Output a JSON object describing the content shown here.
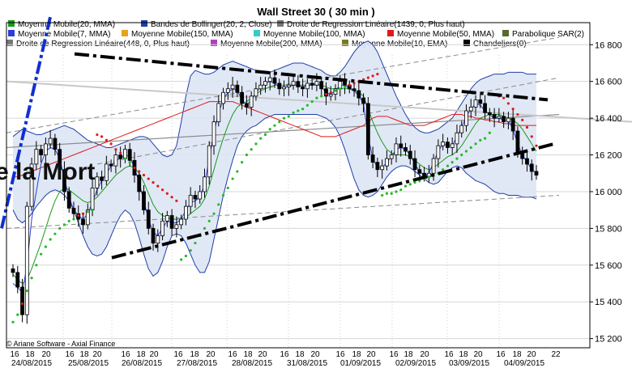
{
  "chart_data": {
    "type": "candlestick",
    "title": "Wall Street 30  ( 30 min )",
    "copyright": "© Ariane Software - Axial Finance",
    "overlay_text": "e la Mort",
    "ylim": [
      15150,
      16920
    ],
    "y_ticks": [
      15200,
      15400,
      15600,
      15800,
      16000,
      16200,
      16400,
      16600,
      16800
    ],
    "y_tick_labels": [
      "15 200",
      "15 400",
      "15 600",
      "15 800",
      "16 000",
      "16 200",
      "16 400",
      "16 600",
      "16 800"
    ],
    "hour_ticks": [
      "16",
      "18",
      "20",
      "16",
      "18",
      "20",
      "16",
      "18",
      "20",
      "16",
      "18",
      "20",
      "16",
      "18",
      "20",
      "16",
      "18",
      "20",
      "16",
      "18",
      "20",
      "16",
      "18",
      "20",
      "16",
      "18",
      "20",
      "16",
      "18",
      "20",
      "22"
    ],
    "date_ticks": [
      "24/08/2015",
      "25/08/2015",
      "26/08/2015",
      "27/08/2015",
      "28/08/2015",
      "31/08/2015",
      "01/09/2015",
      "02/09/2015",
      "03/09/2015",
      "04/09/2015"
    ],
    "legend": [
      {
        "label": "Moyenne Mobile(20, MMA)",
        "color": "#1a9a1a"
      },
      {
        "label": "Bandes de Bollinger(20, 2, Close)",
        "color": "#1f3fa8"
      },
      {
        "label": "Droite de Regression Linéaire(1439, 0, Plus haut)",
        "color": "#777777"
      },
      {
        "label": "Moyenne Mobile(7, MMA)",
        "color": "#2b3fd6"
      },
      {
        "label": "Moyenne Mobile(150, MMA)",
        "color": "#e8a21a"
      },
      {
        "label": "Moyenne Mobile(100, MMA)",
        "color": "#33cccc"
      },
      {
        "label": "Moyenne Mobile(50, MMA)",
        "color": "#e01a1a"
      },
      {
        "label": "Parabolique SAR(2)",
        "color": "#556b2f"
      },
      {
        "label": "Droite de Regression Linéaire(448, 0, Plus haut)",
        "color": "#777777"
      },
      {
        "label": "Moyenne Mobile(200, MMA)",
        "color": "#b040c0"
      },
      {
        "label": "Moyenne Mobile(10, EMA)",
        "color": "#7a7a20"
      },
      {
        "label": "Chandeliers(0)",
        "color": "#000000"
      }
    ],
    "colors": {
      "band_fill": "#dde5f5",
      "band_line": "#1f3fa8",
      "sar_up": "#22bb22",
      "sar_down": "#e01a1a",
      "trendline": "#000000",
      "manual_blue": "#1030d0"
    },
    "close": [
      15560,
      15480,
      15330,
      15920,
      16150,
      16230,
      16200,
      16260,
      16290,
      16230,
      16120,
      16000,
      15910,
      15880,
      15850,
      15820,
      15900,
      16020,
      16080,
      16060,
      16150,
      16140,
      16200,
      16180,
      16230,
      16170,
      16090,
      16000,
      15900,
      15800,
      15720,
      15760,
      15840,
      15870,
      15800,
      15820,
      15850,
      15920,
      15980,
      15960,
      16000,
      16080,
      16250,
      16380,
      16480,
      16540,
      16560,
      16580,
      16540,
      16480,
      16460,
      16520,
      16560,
      16580,
      16600,
      16620,
      16590,
      16560,
      16570,
      16580,
      16600,
      16570,
      16560,
      16590,
      16580,
      16600,
      16560,
      16520,
      16530,
      16560,
      16600,
      16580,
      16560,
      16550,
      16510,
      16480,
      16200,
      16160,
      16120,
      16140,
      16180,
      16200,
      16260,
      16240,
      16220,
      16180,
      16120,
      16100,
      16080,
      16100,
      16180,
      16250,
      16270,
      16240,
      16260,
      16320,
      16360,
      16440,
      16460,
      16500,
      16480,
      16430,
      16420,
      16400,
      16410,
      16380,
      16400,
      16330,
      16210,
      16180,
      16150,
      16110,
      16090
    ],
    "ma7": [
      15500,
      15480,
      15450,
      15600,
      15850,
      16000,
      16150,
      16220,
      16240,
      16230,
      16180,
      16070,
      15970,
      15900,
      15870,
      15850,
      15880,
      15940,
      16010,
      16060,
      16100,
      16140,
      16170,
      16180,
      16200,
      16190,
      16130,
      16050,
      15950,
      15850,
      15780,
      15760,
      15800,
      15840,
      15830,
      15830,
      15850,
      15900,
      15940,
      15950,
      15970,
      16040,
      16180,
      16320,
      16430,
      16500,
      16540,
      16560,
      16550,
      16500,
      16470,
      16500,
      16540,
      16570,
      16590,
      16600,
      16590,
      16570,
      16570,
      16570,
      16580,
      16580,
      16570,
      16580,
      16580,
      16590,
      16570,
      16540,
      16530,
      16550,
      16580,
      16580,
      16560,
      16550,
      16520,
      16480,
      16300,
      16180,
      16130,
      16130,
      16160,
      16190,
      16230,
      16240,
      16230,
      16200,
      16150,
      16110,
      16090,
      16100,
      16160,
      16220,
      16260,
      16250,
      16250,
      16300,
      16350,
      16410,
      16450,
      16480,
      16470,
      16440,
      16420,
      16400,
      16400,
      16390,
      16390,
      16340,
      16260,
      16200,
      16160,
      16120,
      16100
    ],
    "ma20": [
      15550,
      15520,
      15500,
      15520,
      15580,
      15650,
      15720,
      15800,
      15880,
      15950,
      16000,
      16020,
      16010,
      15990,
      15970,
      15950,
      15940,
      15950,
      15970,
      16000,
      16030,
      16060,
      16090,
      16110,
      16130,
      16140,
      16130,
      16100,
      16050,
      15990,
      15930,
      15890,
      15870,
      15860,
      15850,
      15850,
      15850,
      15860,
      15880,
      15900,
      15920,
      15960,
      16030,
      16120,
      16210,
      16290,
      16360,
      16420,
      16460,
      16480,
      16490,
      16510,
      16530,
      16550,
      16560,
      16570,
      16580,
      16580,
      16580,
      16580,
      16580,
      16580,
      16580,
      16580,
      16580,
      16580,
      16580,
      16570,
      16560,
      16560,
      16560,
      16560,
      16560,
      16550,
      16540,
      16520,
      16450,
      16380,
      16320,
      16270,
      16230,
      16210,
      16200,
      16200,
      16200,
      16190,
      16170,
      16150,
      16130,
      16120,
      16130,
      16150,
      16170,
      16190,
      16200,
      16220,
      16250,
      16290,
      16330,
      16370,
      16400,
      16410,
      16420,
      16420,
      16420,
      16410,
      16400,
      16390,
      16370,
      16340,
      16300,
      16260,
      16220
    ],
    "bb_upper": [
      16300,
      16320,
      16340,
      16330,
      16320,
      16310,
      16310,
      16320,
      16330,
      16340,
      16350,
      16360,
      16350,
      16340,
      16320,
      16300,
      16280,
      16270,
      16260,
      16250,
      16240,
      16240,
      16250,
      16260,
      16270,
      16280,
      16290,
      16300,
      16300,
      16290,
      16260,
      16230,
      16200,
      16190,
      16200,
      16250,
      16380,
      16520,
      16630,
      16660,
      16650,
      16640,
      16640,
      16650,
      16670,
      16690,
      16700,
      16710,
      16700,
      16690,
      16680,
      16670,
      16660,
      16650,
      16650,
      16650,
      16660,
      16670,
      16680,
      16690,
      16700,
      16700,
      16700,
      16690,
      16680,
      16670,
      16660,
      16640,
      16630,
      16630,
      16650,
      16680,
      16720,
      16760,
      16790,
      16810,
      16820,
      16800,
      16760,
      16700,
      16640,
      16580,
      16520,
      16470,
      16420,
      16380,
      16350,
      16330,
      16320,
      16320,
      16330,
      16340,
      16360,
      16380,
      16400,
      16440,
      16480,
      16520,
      16560,
      16590,
      16610,
      16620,
      16630,
      16640,
      16640,
      16640,
      16650,
      16650,
      16650,
      16650,
      16640,
      16640,
      16640
    ],
    "bb_lower": [
      15900,
      15850,
      15830,
      15850,
      15880,
      15920,
      15950,
      15980,
      16000,
      16010,
      16000,
      15980,
      15950,
      15900,
      15830,
      15760,
      15700,
      15660,
      15650,
      15660,
      15700,
      15760,
      15820,
      15870,
      15900,
      15880,
      15830,
      15750,
      15660,
      15580,
      15540,
      15560,
      15620,
      15700,
      15760,
      15770,
      15760,
      15720,
      15660,
      15600,
      15560,
      15560,
      15620,
      15740,
      15860,
      15980,
      16080,
      16170,
      16250,
      16300,
      16330,
      16350,
      16360,
      16380,
      16400,
      16410,
      16420,
      16420,
      16420,
      16420,
      16420,
      16420,
      16420,
      16420,
      16420,
      16420,
      16410,
      16400,
      16380,
      16350,
      16300,
      16230,
      16150,
      16070,
      16010,
      15980,
      15970,
      15980,
      16000,
      16040,
      16080,
      16110,
      16130,
      16140,
      16140,
      16130,
      16110,
      16090,
      16070,
      16050,
      16040,
      16050,
      16080,
      16110,
      16130,
      16140,
      16130,
      16100,
      16080,
      16060,
      16050,
      16040,
      16020,
      16000,
      15990,
      15990,
      15980,
      15980,
      15980,
      15970,
      15970,
      15970,
      15960
    ],
    "ma50": [
      16080,
      16080,
      16090,
      16100,
      16110,
      16120,
      16130,
      16140,
      16150,
      16160,
      16170,
      16180,
      16190,
      16200,
      16210,
      16220,
      16230,
      16240,
      16250,
      16260,
      16270,
      16280,
      16290,
      16300,
      16310,
      16320,
      16330,
      16340,
      16350,
      16360,
      16370,
      16380,
      16390,
      16400,
      16410,
      16420,
      16430,
      16440,
      16450,
      16460,
      16470,
      16480,
      16490,
      16490,
      16490,
      16490,
      16490,
      16490,
      16480,
      16470,
      16460,
      16450,
      16440,
      16430,
      16420,
      16410,
      16400,
      16390,
      16380,
      16370,
      16360,
      16350,
      16340,
      16330,
      16320,
      16310,
      16300,
      16300,
      16300,
      16300,
      16310,
      16320,
      16330,
      16340,
      16350,
      16360,
      16380,
      16400,
      16410,
      16410,
      16410,
      16400,
      16390,
      16380,
      16370,
      16360,
      16360,
      16360,
      16360,
      16370,
      16380,
      16390,
      16400,
      16410,
      16420,
      16420,
      16420,
      16410,
      16410,
      16400,
      16400,
      16390,
      16390,
      16380,
      16380,
      16370,
      16370,
      16360,
      16360,
      16360,
      16360,
      16360,
      16360
    ],
    "reg_long": [
      16240,
      16420
    ],
    "reg_short": [
      16600,
      16410
    ],
    "trend_upper": [
      16750,
      16500
    ],
    "trend_lower": [
      15640,
      16260
    ],
    "manual_line": [
      15800,
      16950
    ],
    "sar": [
      15290,
      15330,
      15390,
      15460,
      15530,
      15600,
      15660,
      15700,
      15740,
      15770,
      15800,
      15820,
      15840,
      15850,
      15870,
      15880,
      15890,
      15900,
      16310,
      16300,
      16280,
      16260,
      16230,
      16210,
      16180,
      16160,
      16130,
      16110,
      16090,
      16070,
      16050,
      16030,
      16010,
      15990,
      15970,
      15950,
      15630,
      15650,
      15680,
      15720,
      15760,
      15800,
      15840,
      15880,
      15930,
      15980,
      16020,
      16070,
      16110,
      16160,
      16200,
      16230,
      16260,
      16290,
      16310,
      16340,
      16360,
      16380,
      16400,
      16410,
      16430,
      16440,
      16450,
      16470,
      16490,
      16510,
      16520,
      16530,
      16540,
      16550,
      16560,
      16570,
      16580,
      16590,
      16600,
      16610,
      16620,
      16630,
      16640,
      15980,
      15990,
      15990,
      16000,
      16010,
      16030,
      16040,
      16050,
      16060,
      16070,
      16080,
      16090,
      16100,
      16120,
      16140,
      16160,
      16180,
      16200,
      16220,
      16240,
      16260,
      16280,
      16290,
      16320,
      16530,
      16520,
      16510,
      16480,
      16450,
      16420,
      16390,
      16350,
      16300,
      16250
    ]
  }
}
